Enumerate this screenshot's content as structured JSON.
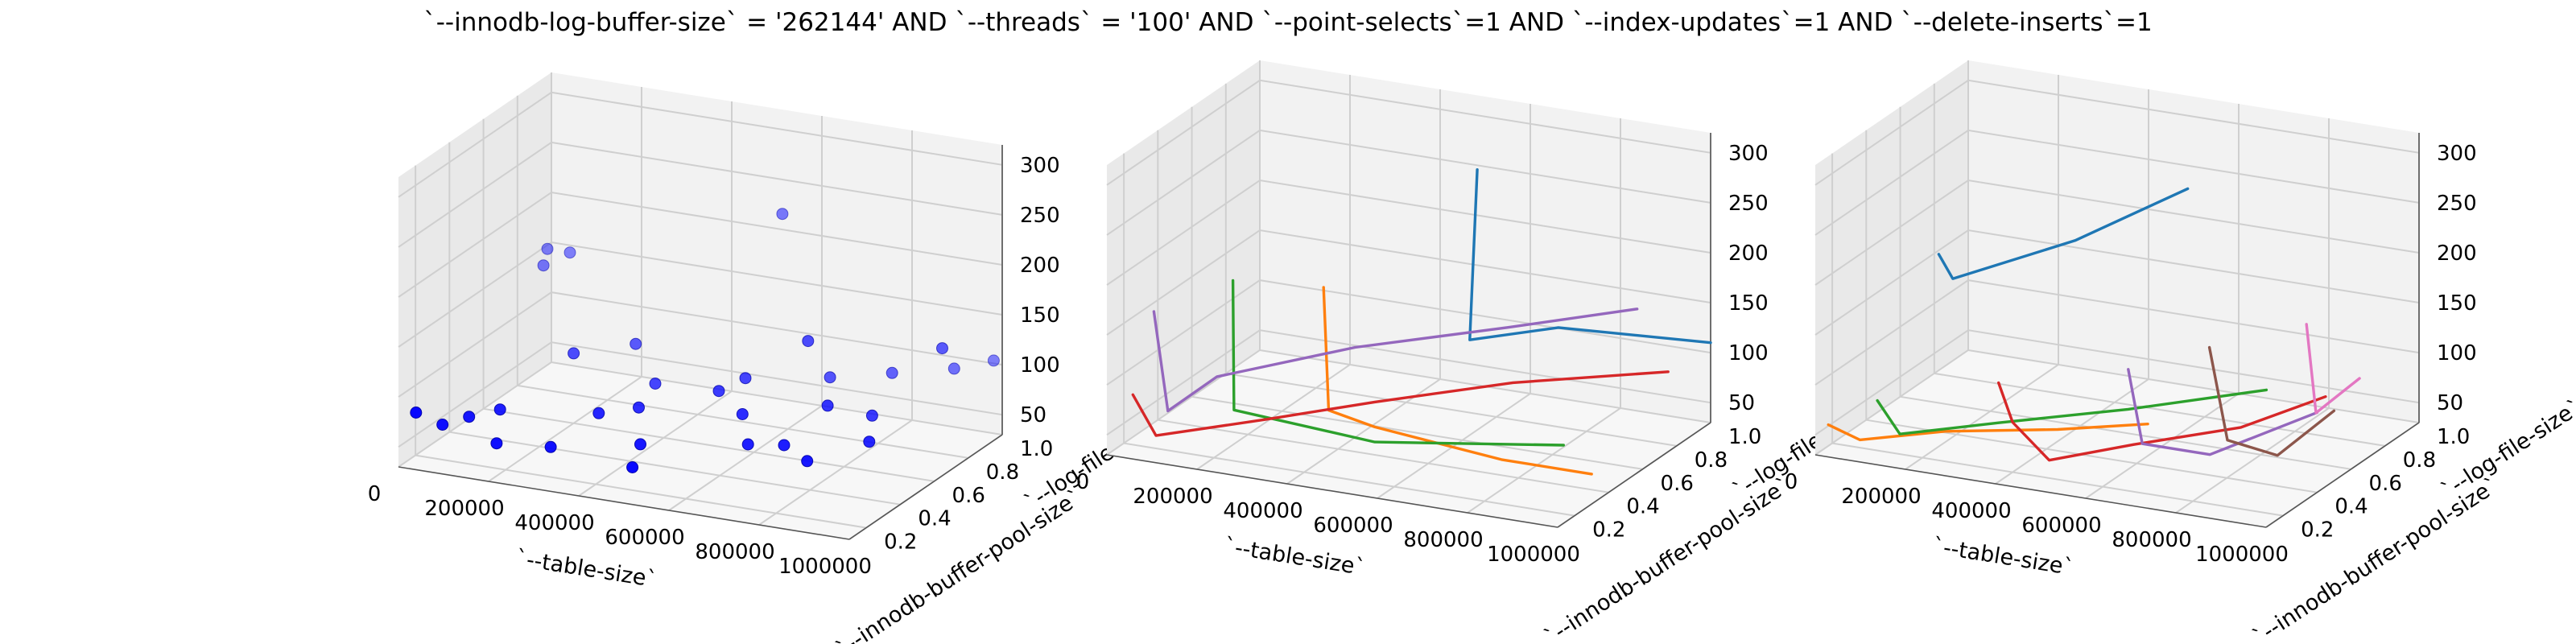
{
  "title": "`--innodb-log-buffer-size` = '262144' AND `--threads` = '100'  AND `--point-selects`=1 AND `--index-updates`=1 AND `--delete-inserts`=1",
  "axes": {
    "x_label": "`--table-size`",
    "y_label": "`--innodb-buffer-pool-size`",
    "z_label": "`--log-file-size`",
    "x_ticks": [
      "0",
      "200000",
      "400000",
      "600000",
      "800000",
      "1000000"
    ],
    "y_ticks": [
      "0.2",
      "0.4",
      "0.6",
      "0.8",
      "1.0"
    ],
    "z_ticks": [
      "50",
      "100",
      "150",
      "200",
      "250",
      "300"
    ]
  },
  "chart_data": [
    {
      "type": "scatter",
      "color": "#0000ff",
      "xlim": [
        0,
        1000000
      ],
      "ylim": [
        0.1,
        1.0
      ],
      "zlim": [
        30,
        320
      ],
      "points": [
        {
          "x": 10000,
          "y": 0.95,
          "z": 150
        },
        {
          "x": 60000,
          "y": 0.95,
          "z": 150
        },
        {
          "x": 20000,
          "y": 0.9,
          "z": 140
        },
        {
          "x": 20000,
          "y": 0.15,
          "z": 80
        },
        {
          "x": 60000,
          "y": 0.2,
          "z": 65
        },
        {
          "x": 100000,
          "y": 0.25,
          "z": 70
        },
        {
          "x": 150000,
          "y": 0.3,
          "z": 75
        },
        {
          "x": 180000,
          "y": 0.2,
          "z": 55
        },
        {
          "x": 200000,
          "y": 0.6,
          "z": 100
        },
        {
          "x": 300000,
          "y": 0.2,
          "z": 60
        },
        {
          "x": 350000,
          "y": 0.35,
          "z": 80
        },
        {
          "x": 420000,
          "y": 0.4,
          "z": 85
        },
        {
          "x": 480000,
          "y": 0.25,
          "z": 70
        },
        {
          "x": 500000,
          "y": 0.15,
          "z": 60
        },
        {
          "x": 550000,
          "y": 0.9,
          "z": 230
        },
        {
          "x": 560000,
          "y": 0.5,
          "z": 100
        },
        {
          "x": 600000,
          "y": 0.55,
          "z": 110
        },
        {
          "x": 650000,
          "y": 0.4,
          "z": 95
        },
        {
          "x": 700000,
          "y": 0.3,
          "z": 80
        },
        {
          "x": 720000,
          "y": 0.6,
          "z": 150
        },
        {
          "x": 750000,
          "y": 0.65,
          "z": 110
        },
        {
          "x": 780000,
          "y": 0.3,
          "z": 85
        },
        {
          "x": 820000,
          "y": 0.45,
          "z": 110
        },
        {
          "x": 850000,
          "y": 0.25,
          "z": 80
        },
        {
          "x": 900000,
          "y": 0.5,
          "z": 100
        },
        {
          "x": 950000,
          "y": 0.35,
          "z": 95
        },
        {
          "x": 980000,
          "y": 0.7,
          "z": 150
        },
        {
          "x": 850000,
          "y": 0.75,
          "z": 110
        },
        {
          "x": 950000,
          "y": 0.85,
          "z": 110
        },
        {
          "x": 1000000,
          "y": 0.95,
          "z": 110
        },
        {
          "x": 300000,
          "y": 0.7,
          "z": 105
        },
        {
          "x": 400000,
          "y": 0.55,
          "z": 90
        }
      ]
    },
    {
      "type": "line",
      "xlim": [
        0,
        1000000
      ],
      "ylim": [
        0.1,
        1.0
      ],
      "zlim": [
        30,
        320
      ],
      "series": [
        {
          "color": "#1f77b4",
          "points": [
            [
              520000,
              0.9,
              260
            ],
            [
              560000,
              0.75,
              110
            ],
            [
              700000,
              0.9,
              115
            ],
            [
              1000000,
              1.0,
              110
            ]
          ]
        },
        {
          "color": "#ff7f0e",
          "points": [
            [
              330000,
              0.5,
              175
            ],
            [
              360000,
              0.45,
              60
            ],
            [
              500000,
              0.35,
              65
            ],
            [
              800000,
              0.3,
              60
            ],
            [
              1000000,
              0.3,
              60
            ]
          ]
        },
        {
          "color": "#2ca02c",
          "points": [
            [
              110000,
              0.55,
              160
            ],
            [
              150000,
              0.45,
              45
            ],
            [
              500000,
              0.35,
              50
            ],
            [
              900000,
              0.4,
              70
            ]
          ]
        },
        {
          "color": "#d62728",
          "points": [
            [
              20000,
              0.2,
              80
            ],
            [
              90000,
              0.15,
              50
            ],
            [
              300000,
              0.25,
              70
            ],
            [
              500000,
              0.35,
              90
            ],
            [
              750000,
              0.5,
              110
            ],
            [
              1000000,
              0.75,
              110
            ]
          ]
        },
        {
          "color": "#9467bd",
          "points": [
            [
              10000,
              0.35,
              145
            ],
            [
              60000,
              0.3,
              55
            ],
            [
              150000,
              0.35,
              90
            ],
            [
              400000,
              0.5,
              120
            ],
            [
              700000,
              0.6,
              150
            ],
            [
              950000,
              0.7,
              175
            ]
          ]
        }
      ]
    },
    {
      "type": "line",
      "xlim": [
        0,
        1000000
      ],
      "ylim": [
        0.1,
        1.0
      ],
      "zlim": [
        30,
        320
      ],
      "series": [
        {
          "color": "#1f77b4",
          "points": [
            [
              10000,
              0.8,
              150
            ],
            [
              60000,
              0.75,
              135
            ],
            [
              350000,
              0.7,
              200
            ],
            [
              600000,
              0.7,
              270
            ]
          ]
        },
        {
          "color": "#ff7f0e",
          "points": [
            [
              10000,
              0.15,
              55
            ],
            [
              80000,
              0.15,
              45
            ],
            [
              250000,
              0.2,
              60
            ],
            [
              500000,
              0.2,
              80
            ],
            [
              700000,
              0.2,
              100
            ]
          ]
        },
        {
          "color": "#2ca02c",
          "points": [
            [
              100000,
              0.2,
              80
            ],
            [
              150000,
              0.2,
              50
            ],
            [
              350000,
              0.25,
              70
            ],
            [
              600000,
              0.35,
              90
            ],
            [
              850000,
              0.5,
              110
            ]
          ]
        },
        {
          "color": "#d62728",
          "points": [
            [
              350000,
              0.25,
              110
            ],
            [
              400000,
              0.2,
              80
            ],
            [
              500000,
              0.15,
              55
            ],
            [
              650000,
              0.25,
              70
            ],
            [
              850000,
              0.35,
              90
            ],
            [
              1000000,
              0.45,
              120
            ]
          ]
        },
        {
          "color": "#9467bd",
          "points": [
            [
              600000,
              0.35,
              130
            ],
            [
              650000,
              0.3,
              65
            ],
            [
              800000,
              0.3,
              65
            ],
            [
              1000000,
              0.4,
              110
            ]
          ]
        },
        {
          "color": "#8c564b",
          "points": [
            [
              780000,
              0.35,
              165
            ],
            [
              820000,
              0.35,
              75
            ],
            [
              950000,
              0.3,
              75
            ],
            [
              1000000,
              0.5,
              100
            ]
          ]
        },
        {
          "color": "#e377c2",
          "points": [
            [
              920000,
              0.55,
              175
            ],
            [
              960000,
              0.5,
              95
            ],
            [
              1000000,
              0.65,
              115
            ]
          ]
        }
      ]
    }
  ]
}
